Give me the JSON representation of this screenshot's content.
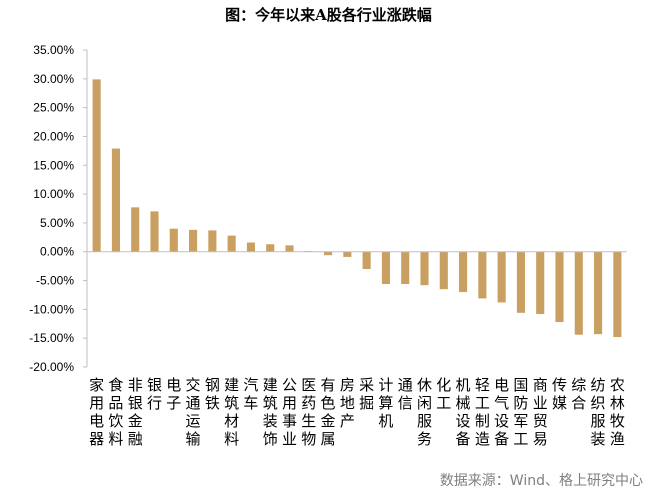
{
  "title": "图：今年以来A股各行业涨跌幅",
  "source": "数据来源：Wind、格上研究中心",
  "chart_data": {
    "type": "bar",
    "title": "图：今年以来A股各行业涨跌幅",
    "xlabel": "",
    "ylabel": "",
    "ylim": [
      -20,
      35
    ],
    "ytick_step": 5,
    "ytick_labels": [
      "35.00%",
      "30.00%",
      "25.00%",
      "20.00%",
      "15.00%",
      "10.00%",
      "5.00%",
      "0.00%",
      "-5.00%",
      "-10.00%",
      "-15.00%",
      "-20.00%"
    ],
    "bar_color": "#c9a062",
    "grid": false,
    "legend": "none",
    "categories": [
      "家用电器",
      "食品饮料",
      "非银金融",
      "银行",
      "电子",
      "交通运输",
      "钢铁",
      "建筑材料",
      "汽车",
      "建筑装饰",
      "公用事业",
      "医药生物",
      "有色金属",
      "房地产",
      "采掘",
      "计算机",
      "通信",
      "休闲服务",
      "化工",
      "机械设备",
      "轻工制造",
      "电气设备",
      "国防军工",
      "商业贸易",
      "传媒",
      "综合",
      "纺织服装",
      "农林牧渔"
    ],
    "values": [
      29.9,
      17.9,
      7.7,
      7.0,
      4.0,
      3.8,
      3.7,
      2.8,
      1.6,
      1.3,
      1.1,
      0.1,
      -0.6,
      -0.9,
      -3.0,
      -5.6,
      -5.6,
      -5.8,
      -6.5,
      -7.0,
      -8.1,
      -8.8,
      -10.6,
      -10.8,
      -12.2,
      -14.4,
      -14.3,
      -14.8
    ]
  }
}
